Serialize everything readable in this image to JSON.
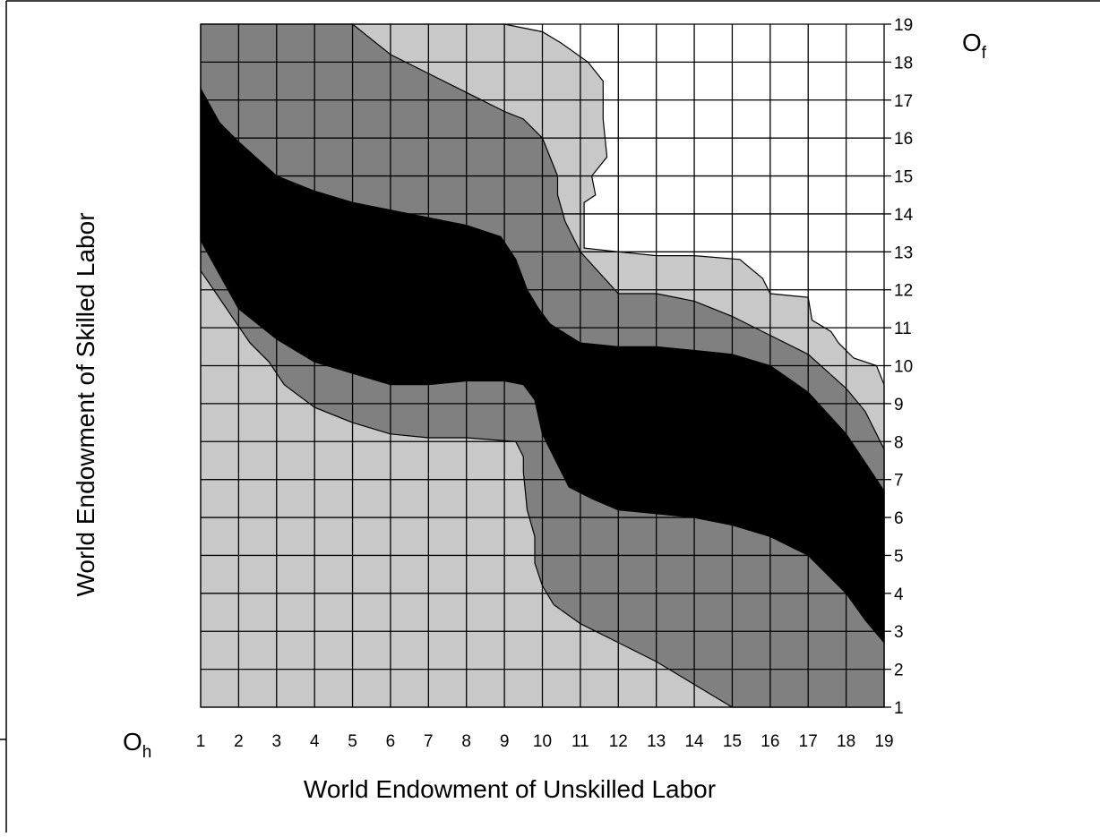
{
  "chart_data": {
    "type": "area",
    "title": "",
    "xlabel": "World Endowment of Unskilled Labor",
    "ylabel": "World Endowment of Skilled Labor",
    "xlim": [
      1,
      19
    ],
    "ylim": [
      1,
      19
    ],
    "x_ticks": [
      "1",
      "2",
      "3",
      "4",
      "5",
      "6",
      "7",
      "8",
      "9",
      "10",
      "11",
      "12",
      "13",
      "14",
      "15",
      "16",
      "17",
      "18",
      "19"
    ],
    "y_ticks": [
      "1",
      "2",
      "3",
      "4",
      "5",
      "6",
      "7",
      "8",
      "9",
      "10",
      "11",
      "12",
      "13",
      "14",
      "15",
      "16",
      "17",
      "18",
      "19"
    ],
    "grid": true,
    "origin_home": {
      "base": "O",
      "sub": "h"
    },
    "origin_foreign": {
      "base": "O",
      "sub": "f"
    },
    "region_colors": {
      "light": "#c8c8c8",
      "medium": "#808080",
      "dark": "#000000"
    },
    "regions": [
      {
        "shade": "light",
        "points": [
          [
            1,
            19
          ],
          [
            9,
            19
          ],
          [
            10,
            18.8
          ],
          [
            10.5,
            18.5
          ],
          [
            11.2,
            18
          ],
          [
            11.6,
            17.5
          ],
          [
            11.6,
            16.5
          ],
          [
            11.7,
            15.5
          ],
          [
            11.3,
            15
          ],
          [
            11.4,
            14.5
          ],
          [
            11.1,
            14.3
          ],
          [
            11.1,
            13.1
          ],
          [
            12,
            13
          ],
          [
            13,
            12.9
          ],
          [
            14,
            12.9
          ],
          [
            15.2,
            12.8
          ],
          [
            15.8,
            12.3
          ],
          [
            16,
            11.9
          ],
          [
            17,
            11.8
          ],
          [
            17.1,
            11.2
          ],
          [
            17.6,
            10.9
          ],
          [
            17.8,
            10.6
          ],
          [
            18.2,
            10.2
          ],
          [
            18.8,
            10
          ],
          [
            19,
            9.5
          ],
          [
            19,
            1
          ],
          [
            1,
            1
          ]
        ]
      },
      {
        "shade": "medium",
        "points": [
          [
            1,
            19
          ],
          [
            5,
            19
          ],
          [
            6,
            18.2
          ],
          [
            7,
            17.7
          ],
          [
            8,
            17.2
          ],
          [
            9,
            16.7
          ],
          [
            9.5,
            16.5
          ],
          [
            10,
            16
          ],
          [
            10.2,
            15.5
          ],
          [
            10.4,
            15
          ],
          [
            10.4,
            14.5
          ],
          [
            10.6,
            13.8
          ],
          [
            11,
            13
          ],
          [
            12,
            11.9
          ],
          [
            13,
            11.9
          ],
          [
            14,
            11.7
          ],
          [
            15,
            11.3
          ],
          [
            16,
            10.8
          ],
          [
            17,
            10.3
          ],
          [
            18,
            9.4
          ],
          [
            18.5,
            8.8
          ],
          [
            19,
            7.8
          ],
          [
            19,
            1
          ],
          [
            15,
            1
          ],
          [
            14,
            1.6
          ],
          [
            13,
            2.2
          ],
          [
            12,
            2.7
          ],
          [
            11,
            3.2
          ],
          [
            10.3,
            3.7
          ],
          [
            10,
            4.2
          ],
          [
            9.8,
            4.8
          ],
          [
            9.8,
            5.5
          ],
          [
            9.6,
            6.2
          ],
          [
            9.5,
            7.2
          ],
          [
            9.5,
            7.6
          ],
          [
            9.3,
            8
          ],
          [
            8,
            8.1
          ],
          [
            7,
            8.1
          ],
          [
            6,
            8.2
          ],
          [
            5,
            8.5
          ],
          [
            4,
            8.9
          ],
          [
            3.2,
            9.5
          ],
          [
            2.8,
            10.1
          ],
          [
            2.3,
            10.6
          ],
          [
            1,
            12.5
          ]
        ]
      },
      {
        "shade": "dark",
        "points": [
          [
            1,
            17.3
          ],
          [
            1.5,
            16.4
          ],
          [
            2,
            15.9
          ],
          [
            3,
            15
          ],
          [
            4,
            14.6
          ],
          [
            5,
            14.3
          ],
          [
            6,
            14.1
          ],
          [
            7,
            13.9
          ],
          [
            8,
            13.7
          ],
          [
            8.9,
            13.4
          ],
          [
            9.3,
            12.8
          ],
          [
            9.6,
            12
          ],
          [
            9.9,
            11.5
          ],
          [
            10.2,
            11.1
          ],
          [
            11,
            10.6
          ],
          [
            12,
            10.5
          ],
          [
            13,
            10.5
          ],
          [
            14,
            10.4
          ],
          [
            15,
            10.3
          ],
          [
            16,
            10
          ],
          [
            17,
            9.3
          ],
          [
            18,
            8.2
          ],
          [
            18.6,
            7.3
          ],
          [
            19,
            6.7
          ],
          [
            19,
            2.7
          ],
          [
            18.5,
            3.3
          ],
          [
            18,
            4
          ],
          [
            17,
            5
          ],
          [
            16,
            5.5
          ],
          [
            15,
            5.8
          ],
          [
            14,
            6
          ],
          [
            13,
            6.1
          ],
          [
            12,
            6.2
          ],
          [
            11.3,
            6.5
          ],
          [
            10.7,
            6.8
          ],
          [
            10.3,
            7.6
          ],
          [
            10,
            8.2
          ],
          [
            9.8,
            9.1
          ],
          [
            9.5,
            9.5
          ],
          [
            9,
            9.6
          ],
          [
            8,
            9.6
          ],
          [
            7,
            9.5
          ],
          [
            6,
            9.5
          ],
          [
            5,
            9.8
          ],
          [
            4,
            10.1
          ],
          [
            3,
            10.7
          ],
          [
            2,
            11.5
          ],
          [
            1,
            13.3
          ]
        ]
      }
    ]
  }
}
